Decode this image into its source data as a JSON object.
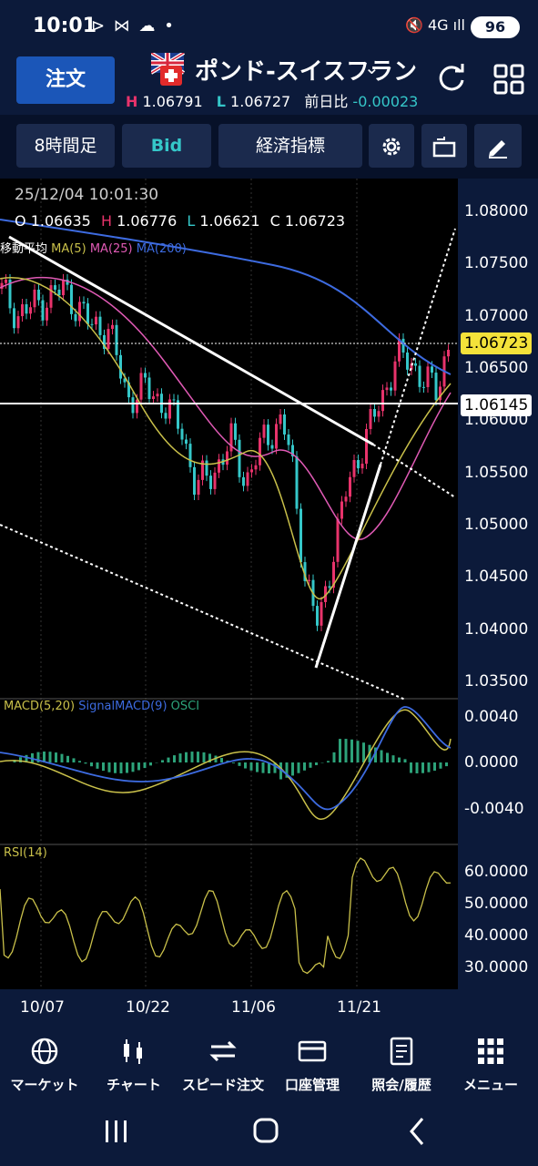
{
  "status": {
    "time": "10:01",
    "left_icons": "⊳ ⋈ ☁ •",
    "right_icons": "🔇 4G ıll",
    "battery": "96"
  },
  "header": {
    "order_label": "注文",
    "pair_name": "ポンド-スイスフラン",
    "high_prefix": "H",
    "high": "1.06791",
    "low_prefix": "L",
    "low": "1.06727",
    "change_label": "前日比",
    "change": "-0.00023",
    "icons": [
      "flag-gb-ch-icon",
      "chevron-down-icon",
      "refresh-icon",
      "grid-menu-icon"
    ]
  },
  "toolbar": {
    "timeframe": "8時間足",
    "bid": "Bid",
    "indicators": "経済指標",
    "icons": [
      "gear-icon",
      "rotate-screen-icon",
      "pencil-icon"
    ]
  },
  "chart_info": {
    "datetime": "25/12/04 10:01:30",
    "O_label": "O",
    "O": "1.06635",
    "H_label": "H",
    "H": "1.06776",
    "L_label": "L",
    "L": "1.06621",
    "C_label": "C",
    "C": "1.06723",
    "ma_label": "移動平均",
    "ma5": "MA(5)",
    "ma25": "MA(25)",
    "ma200": "MA(200)",
    "macd_label": "MACD(5,20)",
    "signal_label": "SignalMACD(9)",
    "osci_label": "OSCI",
    "rsi_label": "RSI(14)"
  },
  "price_axis": [
    "1.08000",
    "1.07500",
    "1.07000",
    "1.06500",
    "1.06000",
    "1.05500",
    "1.05000",
    "1.04500",
    "1.04000",
    "1.03500"
  ],
  "current_price": "1.06723",
  "line_price": "1.06145",
  "macd_axis": [
    "0.0040",
    "0.0000",
    "-0.0040"
  ],
  "rsi_axis": [
    "60.0000",
    "50.0000",
    "40.0000",
    "30.0000"
  ],
  "dates": [
    "10/07",
    "10/22",
    "11/06",
    "11/21"
  ],
  "colors": {
    "up": "#e8336b",
    "down": "#35c7c9",
    "ma5": "#c9c04a",
    "ma25": "#e05ab5",
    "ma200": "#3d6be0",
    "accent": "#1b56b8"
  },
  "bottom_nav": [
    {
      "label": "マーケット",
      "icon": "globe-icon"
    },
    {
      "label": "チャート",
      "icon": "candlestick-icon"
    },
    {
      "label": "スピード注文",
      "icon": "arrows-exchange-icon"
    },
    {
      "label": "口座管理",
      "icon": "wallet-icon"
    },
    {
      "label": "照会/履歴",
      "icon": "document-icon"
    },
    {
      "label": "メニュー",
      "icon": "dots-grid-icon"
    }
  ]
}
